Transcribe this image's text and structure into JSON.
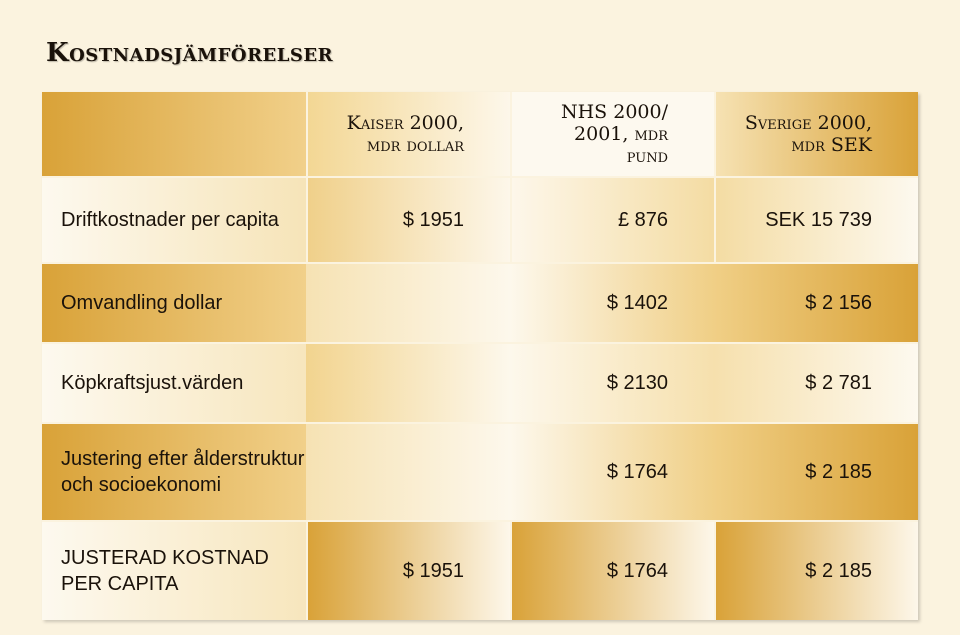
{
  "title": "Kostnadsjämförelser",
  "columns": [
    "Kaiser 2000, mdr dollar",
    "NHS 2000/ 2001, mdr pund",
    "Sverige 2000, mdr SEK"
  ],
  "header_lines": {
    "kaiser": [
      "Kaiser 2000,",
      "mdr dollar"
    ],
    "nhs": [
      "NHS 2000/",
      "2001, mdr",
      "pund"
    ],
    "sverige": [
      "Sverige 2000,",
      "mdr SEK"
    ]
  },
  "rows": [
    {
      "label": "Driftkostnader per capita",
      "values": [
        "$ 1951",
        "£ 876",
        "SEK 15 739"
      ]
    },
    {
      "label": "Omvandling dollar",
      "values": [
        "",
        "$ 1402",
        "$ 2 156"
      ]
    },
    {
      "label": "Köpkraftsjust.värden",
      "values": [
        "",
        "$ 2130",
        "$ 2 781"
      ]
    },
    {
      "label": "Justering efter ålderstruktur och socioekonomi",
      "values": [
        "",
        "$ 1764",
        "$ 2 185"
      ]
    },
    {
      "label": "JUSTERAD KOSTNAD PER CAPITA",
      "values": [
        "$ 1951",
        "$ 1764",
        "$ 2 185"
      ]
    }
  ],
  "colors": {
    "gold": "#d9a238",
    "light": "#fdf9ef",
    "background": "#fbf3df",
    "text": "#1a120a"
  }
}
